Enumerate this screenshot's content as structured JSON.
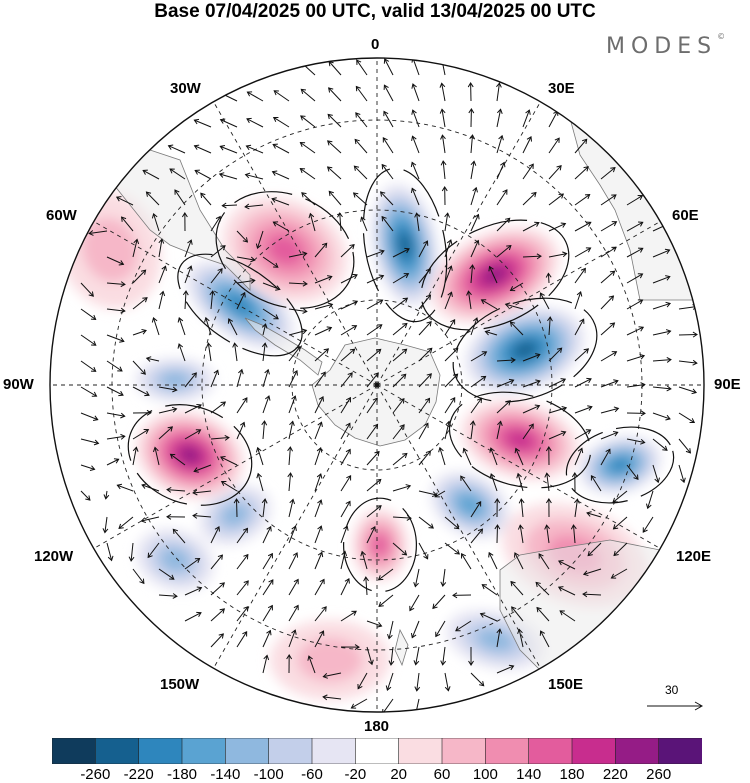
{
  "title": "Base 07/04/2025 00 UTC, valid 13/04/2025 00 UTC",
  "brand": "MODES",
  "brand_mark": "©",
  "longitude_labels": {
    "top": "0",
    "bottom": "180",
    "left": "90W",
    "right": "90E",
    "w30": "30W",
    "e30": "30E",
    "w60": "60W",
    "e60": "60E",
    "w120": "120W",
    "e120": "120E",
    "w150": "150W",
    "e150": "150E"
  },
  "reference_vector": "30",
  "colorbar": {
    "colors": [
      "#0f3b5c",
      "#15608f",
      "#2e86bd",
      "#5aa3d2",
      "#8fb8df",
      "#c3cfea",
      "#e6e5f3",
      "#ffffff",
      "#fadde2",
      "#f6b7c8",
      "#f08db0",
      "#e35c9d",
      "#c82d8e",
      "#951c86",
      "#5a1478"
    ],
    "tick_labels": [
      "-260",
      "-220",
      "-180",
      "-140",
      "-100",
      "-60",
      "-20",
      "20",
      "60",
      "100",
      "140",
      "180",
      "220",
      "260"
    ]
  },
  "map_layers": {
    "plot": "polar-stereographic-south",
    "field_type": "height-anomaly-with-wind-vectors",
    "anomalies": [
      {
        "kind": "negative",
        "level": 5,
        "name": "south-atlantic-low"
      },
      {
        "kind": "positive",
        "level": 5,
        "name": "indian-ocean-high"
      },
      {
        "kind": "negative",
        "level": 5,
        "name": "southern-indian-low"
      },
      {
        "kind": "positive",
        "level": 4,
        "name": "east-indian-high"
      },
      {
        "kind": "negative",
        "level": 3,
        "name": "west-australia-low"
      },
      {
        "kind": "positive",
        "level": 2,
        "name": "australia-high"
      },
      {
        "kind": "negative",
        "level": 2,
        "name": "tasman-low"
      },
      {
        "kind": "positive",
        "level": 3,
        "name": "ross-sea-high"
      },
      {
        "kind": "negative",
        "level": 2,
        "name": "south-pacific-low"
      },
      {
        "kind": "positive",
        "level": 5,
        "name": "amundsen-high"
      },
      {
        "kind": "negative",
        "level": 2,
        "name": "bellingshausen-low"
      },
      {
        "kind": "negative",
        "level": 4,
        "name": "drake-passage-low"
      },
      {
        "kind": "positive",
        "level": 3,
        "name": "weddell-high"
      },
      {
        "kind": "negative",
        "level": 4,
        "name": "east-antarctic-low"
      },
      {
        "kind": "negative",
        "level": 2,
        "name": "pacific-ridge-low"
      },
      {
        "kind": "positive",
        "level": 1,
        "name": "north-pacific-rim"
      },
      {
        "kind": "positive",
        "level": 1,
        "name": "south-america-rim"
      }
    ]
  }
}
